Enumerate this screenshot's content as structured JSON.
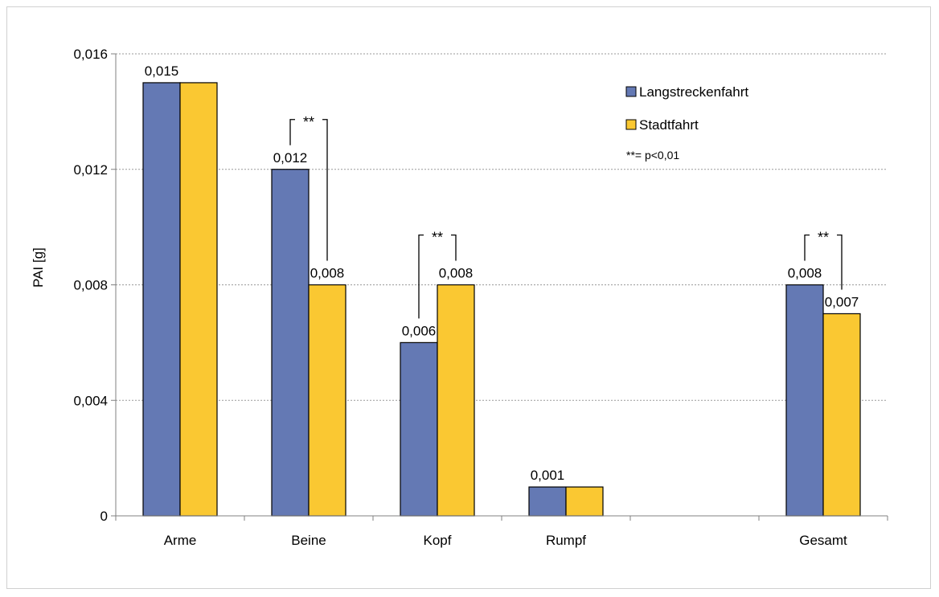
{
  "chart_data": {
    "type": "bar",
    "title": "",
    "xlabel": "",
    "ylabel": "PAI [g]",
    "ylim": [
      0,
      0.016
    ],
    "yticks": [
      "0",
      "0,004",
      "0,008",
      "0,012",
      "0,016"
    ],
    "ytick_values": [
      0,
      0.004,
      0.008,
      0.012,
      0.016
    ],
    "grid": true,
    "legend_position": "top-right",
    "categories": [
      "Arme",
      "Beine",
      "Kopf",
      "Rumpf",
      "",
      "Gesamt"
    ],
    "series": [
      {
        "name": "Langstreckenfahrt",
        "color": "#6479b4",
        "values": [
          0.015,
          0.012,
          0.006,
          0.001,
          null,
          0.008
        ],
        "labels": [
          "0,015",
          "0,012",
          "0,006",
          "0,001",
          "",
          "0,008"
        ]
      },
      {
        "name": "Stadtfahrt",
        "color": "#fac832",
        "values": [
          0.015,
          0.008,
          0.008,
          0.001,
          null,
          0.007
        ],
        "labels": [
          "",
          "0,008",
          "0,008",
          "",
          "",
          "0,007"
        ]
      }
    ],
    "significance": [
      {
        "category": "Beine",
        "label": "**"
      },
      {
        "category": "Kopf",
        "label": "**"
      },
      {
        "category": "Gesamt",
        "label": "**"
      }
    ],
    "legend_note": "**= p<0,01"
  }
}
